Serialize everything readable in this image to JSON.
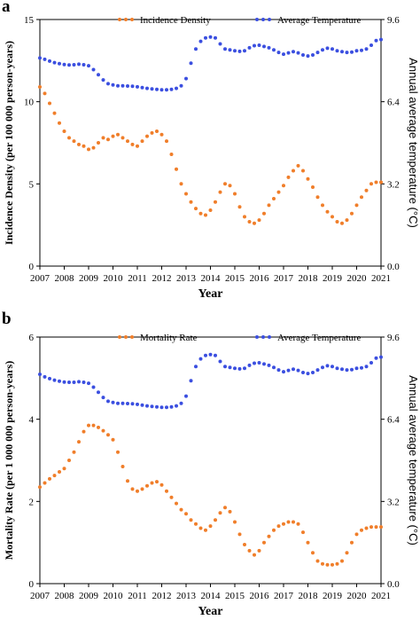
{
  "colors": {
    "orange": "#f07e2a",
    "blue": "#3b4fe0"
  },
  "chart_data": [
    {
      "type": "scatter",
      "panel": "a",
      "xlabel": "Year",
      "ylabel": "Incidence Density (per 100 000 person-years)",
      "y2label": "Annual average temperature (°C)",
      "x_ticks": [
        "2007",
        "2008",
        "2009",
        "2010",
        "2011",
        "2012",
        "2013",
        "2014",
        "2015",
        "2016",
        "2017",
        "2018",
        "2019",
        "2020",
        "2021"
      ],
      "xlim": [
        2007,
        2021
      ],
      "ylim": [
        0,
        15
      ],
      "y_ticks": [
        "0",
        "5",
        "10",
        "15"
      ],
      "y2lim": [
        0,
        9.6
      ],
      "y2_ticks": [
        "0.0",
        "3.2",
        "6.4",
        "9.6"
      ],
      "legend_position": "top",
      "series": [
        {
          "name": "Incidence Density",
          "axis": "left",
          "color": "#f07e2a",
          "x": [
            2007.0,
            2007.2,
            2007.4,
            2007.6,
            2007.8,
            2008.0,
            2008.2,
            2008.4,
            2008.6,
            2008.8,
            2009.0,
            2009.2,
            2009.4,
            2009.6,
            2009.8,
            2010.0,
            2010.2,
            2010.4,
            2010.6,
            2010.8,
            2011.0,
            2011.2,
            2011.4,
            2011.6,
            2011.8,
            2012.0,
            2012.2,
            2012.4,
            2012.6,
            2012.8,
            2013.0,
            2013.2,
            2013.4,
            2013.6,
            2013.8,
            2014.0,
            2014.2,
            2014.4,
            2014.6,
            2014.8,
            2015.0,
            2015.2,
            2015.4,
            2015.6,
            2015.8,
            2016.0,
            2016.2,
            2016.4,
            2016.6,
            2016.8,
            2017.0,
            2017.2,
            2017.4,
            2017.6,
            2017.8,
            2018.0,
            2018.2,
            2018.4,
            2018.6,
            2018.8,
            2019.0,
            2019.2,
            2019.4,
            2019.6,
            2019.8,
            2020.0,
            2020.2,
            2020.4,
            2020.6,
            2020.8,
            2021.0
          ],
          "values": [
            10.9,
            10.5,
            9.9,
            9.3,
            8.7,
            8.2,
            7.8,
            7.6,
            7.4,
            7.3,
            7.1,
            7.2,
            7.5,
            7.8,
            7.7,
            7.9,
            8.0,
            7.8,
            7.6,
            7.4,
            7.3,
            7.6,
            7.9,
            8.1,
            8.2,
            8.0,
            7.6,
            6.8,
            5.9,
            5.0,
            4.4,
            3.9,
            3.5,
            3.2,
            3.1,
            3.4,
            3.9,
            4.5,
            5.0,
            4.9,
            4.4,
            3.6,
            3.0,
            2.7,
            2.6,
            2.8,
            3.2,
            3.7,
            4.1,
            4.5,
            4.9,
            5.4,
            5.8,
            6.1,
            5.8,
            5.3,
            4.8,
            4.2,
            3.7,
            3.3,
            3.0,
            2.7,
            2.6,
            2.8,
            3.2,
            3.7,
            4.2,
            4.6,
            5.0,
            5.1,
            5.1
          ]
        },
        {
          "name": "Average Temperature",
          "axis": "right",
          "color": "#3b4fe0",
          "x": [
            2007.0,
            2007.2,
            2007.4,
            2007.6,
            2007.8,
            2008.0,
            2008.2,
            2008.4,
            2008.6,
            2008.8,
            2009.0,
            2009.2,
            2009.4,
            2009.6,
            2009.8,
            2010.0,
            2010.2,
            2010.4,
            2010.6,
            2010.8,
            2011.0,
            2011.2,
            2011.4,
            2011.6,
            2011.8,
            2012.0,
            2012.2,
            2012.4,
            2012.6,
            2012.8,
            2013.0,
            2013.2,
            2013.4,
            2013.6,
            2013.8,
            2014.0,
            2014.2,
            2014.4,
            2014.6,
            2014.8,
            2015.0,
            2015.2,
            2015.4,
            2015.6,
            2015.8,
            2016.0,
            2016.2,
            2016.4,
            2016.6,
            2016.8,
            2017.0,
            2017.2,
            2017.4,
            2017.6,
            2017.8,
            2018.0,
            2018.2,
            2018.4,
            2018.6,
            2018.8,
            2019.0,
            2019.2,
            2019.4,
            2019.6,
            2019.8,
            2020.0,
            2020.2,
            2020.4,
            2020.6,
            2020.8,
            2021.0
          ],
          "values": [
            8.1,
            8.05,
            7.98,
            7.92,
            7.88,
            7.85,
            7.83,
            7.84,
            7.86,
            7.84,
            7.8,
            7.65,
            7.45,
            7.25,
            7.1,
            7.05,
            7.02,
            7.02,
            7.01,
            7.0,
            6.98,
            6.95,
            6.92,
            6.9,
            6.88,
            6.86,
            6.86,
            6.88,
            6.92,
            7.02,
            7.3,
            7.9,
            8.45,
            8.75,
            8.88,
            8.92,
            8.88,
            8.65,
            8.45,
            8.42,
            8.38,
            8.36,
            8.38,
            8.5,
            8.58,
            8.6,
            8.55,
            8.5,
            8.42,
            8.32,
            8.25,
            8.3,
            8.35,
            8.3,
            8.22,
            8.18,
            8.22,
            8.32,
            8.42,
            8.48,
            8.45,
            8.38,
            8.35,
            8.32,
            8.33,
            8.38,
            8.4,
            8.45,
            8.6,
            8.78,
            8.82
          ]
        }
      ]
    },
    {
      "type": "scatter",
      "panel": "b",
      "xlabel": "Year",
      "ylabel": "Mortality Rate (per 1 000 000 person-years)",
      "y2label": "Annual average temperature (°C)",
      "x_ticks": [
        "2007",
        "2008",
        "2009",
        "2010",
        "2011",
        "2012",
        "2013",
        "2014",
        "2015",
        "2016",
        "2017",
        "2018",
        "2019",
        "2020",
        "2021"
      ],
      "xlim": [
        2007,
        2021
      ],
      "ylim": [
        0,
        6
      ],
      "y_ticks": [
        "0",
        "2",
        "4",
        "6"
      ],
      "y2lim": [
        0,
        9.6
      ],
      "y2_ticks": [
        "0.0",
        "3.2",
        "6.4",
        "9.6"
      ],
      "legend_position": "top",
      "series": [
        {
          "name": "Mortality Rate",
          "axis": "left",
          "color": "#f07e2a",
          "x": [
            2007.0,
            2007.2,
            2007.4,
            2007.6,
            2007.8,
            2008.0,
            2008.2,
            2008.4,
            2008.6,
            2008.8,
            2009.0,
            2009.2,
            2009.4,
            2009.6,
            2009.8,
            2010.0,
            2010.2,
            2010.4,
            2010.6,
            2010.8,
            2011.0,
            2011.2,
            2011.4,
            2011.6,
            2011.8,
            2012.0,
            2012.2,
            2012.4,
            2012.6,
            2012.8,
            2013.0,
            2013.2,
            2013.4,
            2013.6,
            2013.8,
            2014.0,
            2014.2,
            2014.4,
            2014.6,
            2014.8,
            2015.0,
            2015.2,
            2015.4,
            2015.6,
            2015.8,
            2016.0,
            2016.2,
            2016.4,
            2016.6,
            2016.8,
            2017.0,
            2017.2,
            2017.4,
            2017.6,
            2017.8,
            2018.0,
            2018.2,
            2018.4,
            2018.6,
            2018.8,
            2019.0,
            2019.2,
            2019.4,
            2019.6,
            2019.8,
            2020.0,
            2020.2,
            2020.4,
            2020.6,
            2020.8,
            2021.0
          ],
          "values": [
            2.35,
            2.45,
            2.55,
            2.63,
            2.72,
            2.8,
            3.0,
            3.2,
            3.45,
            3.7,
            3.85,
            3.85,
            3.8,
            3.72,
            3.62,
            3.5,
            3.2,
            2.85,
            2.5,
            2.3,
            2.25,
            2.3,
            2.38,
            2.45,
            2.48,
            2.4,
            2.25,
            2.1,
            1.95,
            1.8,
            1.7,
            1.55,
            1.45,
            1.35,
            1.3,
            1.4,
            1.55,
            1.72,
            1.85,
            1.75,
            1.5,
            1.2,
            0.95,
            0.8,
            0.7,
            0.8,
            1.0,
            1.15,
            1.3,
            1.4,
            1.45,
            1.5,
            1.5,
            1.45,
            1.25,
            1.0,
            0.75,
            0.55,
            0.48,
            0.46,
            0.46,
            0.48,
            0.55,
            0.75,
            1.0,
            1.2,
            1.3,
            1.35,
            1.38,
            1.38,
            1.38
          ]
        },
        {
          "name": "Average Temperature",
          "axis": "right",
          "color": "#3b4fe0",
          "x": [
            2007.0,
            2007.2,
            2007.4,
            2007.6,
            2007.8,
            2008.0,
            2008.2,
            2008.4,
            2008.6,
            2008.8,
            2009.0,
            2009.2,
            2009.4,
            2009.6,
            2009.8,
            2010.0,
            2010.2,
            2010.4,
            2010.6,
            2010.8,
            2011.0,
            2011.2,
            2011.4,
            2011.6,
            2011.8,
            2012.0,
            2012.2,
            2012.4,
            2012.6,
            2012.8,
            2013.0,
            2013.2,
            2013.4,
            2013.6,
            2013.8,
            2014.0,
            2014.2,
            2014.4,
            2014.6,
            2014.8,
            2015.0,
            2015.2,
            2015.4,
            2015.6,
            2015.8,
            2016.0,
            2016.2,
            2016.4,
            2016.6,
            2016.8,
            2017.0,
            2017.2,
            2017.4,
            2017.6,
            2017.8,
            2018.0,
            2018.2,
            2018.4,
            2018.6,
            2018.8,
            2019.0,
            2019.2,
            2019.4,
            2019.6,
            2019.8,
            2020.0,
            2020.2,
            2020.4,
            2020.6,
            2020.8,
            2021.0
          ],
          "values": [
            8.15,
            8.05,
            7.98,
            7.92,
            7.88,
            7.85,
            7.84,
            7.84,
            7.86,
            7.84,
            7.8,
            7.65,
            7.45,
            7.25,
            7.1,
            7.05,
            7.02,
            7.02,
            7.01,
            7.0,
            6.98,
            6.95,
            6.92,
            6.9,
            6.88,
            6.86,
            6.86,
            6.88,
            6.92,
            7.02,
            7.3,
            7.9,
            8.45,
            8.75,
            8.88,
            8.92,
            8.88,
            8.65,
            8.45,
            8.42,
            8.38,
            8.36,
            8.38,
            8.5,
            8.58,
            8.6,
            8.55,
            8.5,
            8.42,
            8.32,
            8.25,
            8.3,
            8.35,
            8.3,
            8.22,
            8.18,
            8.22,
            8.32,
            8.42,
            8.48,
            8.45,
            8.38,
            8.35,
            8.32,
            8.33,
            8.38,
            8.4,
            8.45,
            8.6,
            8.78,
            8.82
          ]
        }
      ]
    }
  ]
}
